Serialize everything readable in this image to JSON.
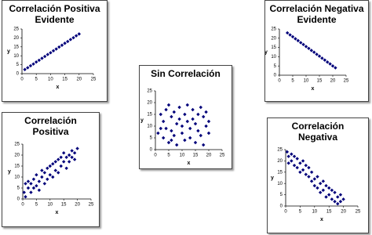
{
  "chart_data": [
    {
      "type": "scatter",
      "title": "Correlación Positiva Evidente",
      "xlabel": "x",
      "ylabel": "y",
      "xlim": [
        0,
        25
      ],
      "ylim": [
        0,
        25
      ],
      "xticks": [
        0,
        5,
        10,
        15,
        20,
        25
      ],
      "yticks": [
        0,
        5,
        10,
        15,
        20,
        25
      ],
      "color": "#00007a",
      "x": [
        1,
        2,
        3,
        4,
        5,
        6,
        7,
        8,
        9,
        10,
        11,
        12,
        13,
        14,
        15,
        16,
        17,
        18,
        19,
        20
      ],
      "y": [
        2.3,
        3.3,
        4.4,
        5.4,
        6.5,
        7.5,
        8.6,
        9.6,
        10.7,
        11.7,
        12.8,
        13.8,
        14.9,
        15.9,
        17,
        18,
        19.1,
        20.1,
        21.2,
        22.2
      ]
    },
    {
      "type": "scatter",
      "title": "Correlación Negativa Evidente",
      "xlabel": "x",
      "ylabel": "y",
      "xlim": [
        0,
        25
      ],
      "ylim": [
        0,
        25
      ],
      "xticks": [
        0,
        5,
        10,
        15,
        20,
        25
      ],
      "yticks": [
        0,
        5,
        10,
        15,
        20,
        25
      ],
      "color": "#00007a",
      "x": [
        3,
        4,
        5,
        6,
        7,
        8,
        9,
        10,
        11,
        12,
        13,
        14,
        15,
        16,
        17,
        18,
        19,
        20,
        21
      ],
      "y": [
        22.9,
        21.8,
        20.8,
        19.7,
        18.7,
        17.6,
        16.6,
        15.5,
        14.5,
        13.4,
        12.4,
        11.3,
        10.3,
        9.2,
        8.2,
        7.1,
        6.1,
        5,
        4
      ]
    },
    {
      "type": "scatter",
      "title": "Sin Correlación",
      "xlabel": "x",
      "ylabel": "y",
      "xlim": [
        0,
        25
      ],
      "ylim": [
        0,
        25
      ],
      "xticks": [
        0,
        5,
        10,
        15,
        20,
        25
      ],
      "yticks": [
        0,
        5,
        10,
        15,
        20,
        25
      ],
      "color": "#00007a",
      "x": [
        1,
        2,
        3,
        3,
        4,
        4,
        5,
        5,
        6,
        6,
        7,
        7,
        8,
        8,
        9,
        9,
        10,
        10,
        11,
        11,
        12,
        12,
        13,
        13,
        14,
        14,
        15,
        15,
        16,
        16,
        17,
        17,
        18,
        18,
        19,
        19,
        20,
        20,
        2,
        6
      ],
      "y": [
        7,
        15,
        5,
        12,
        17,
        9,
        19,
        3,
        14,
        8,
        16,
        6,
        11,
        2,
        13,
        18,
        7,
        10,
        15,
        4,
        12,
        19,
        9,
        5,
        17,
        13,
        3,
        11,
        8,
        15,
        18,
        6,
        14,
        2,
        10,
        16,
        12,
        7,
        9,
        4
      ]
    },
    {
      "type": "scatter",
      "title": "Correlación Positiva",
      "xlabel": "x",
      "ylabel": "y",
      "xlim": [
        0,
        25
      ],
      "ylim": [
        0,
        25
      ],
      "xticks": [
        0,
        5,
        10,
        15,
        20,
        25
      ],
      "yticks": [
        0,
        5,
        10,
        15,
        20,
        25
      ],
      "color": "#00007a",
      "x": [
        0.5,
        1,
        1,
        2,
        2,
        3,
        3,
        4,
        4,
        5,
        5,
        6,
        6,
        7,
        7,
        8,
        8,
        9,
        9,
        10,
        10,
        11,
        11,
        12,
        12,
        13,
        13,
        14,
        14,
        15,
        15,
        16,
        16,
        17,
        17,
        18,
        18,
        19,
        19,
        20
      ],
      "y": [
        3,
        7,
        1,
        5,
        8,
        3,
        7,
        9,
        5,
        6,
        11,
        8,
        4,
        10,
        13,
        12,
        7,
        9,
        14,
        15,
        11,
        10,
        16,
        13,
        17,
        18,
        12,
        15,
        19,
        17,
        21,
        14,
        19,
        20,
        17,
        22,
        19,
        21,
        18,
        23
      ]
    },
    {
      "type": "scatter",
      "title": "Correlación Negativa",
      "xlabel": "x",
      "ylabel": "y",
      "xlim": [
        0,
        25
      ],
      "ylim": [
        0,
        25
      ],
      "xticks": [
        0,
        5,
        10,
        15,
        20,
        25
      ],
      "yticks": [
        0,
        5,
        10,
        15,
        20,
        25
      ],
      "color": "#00007a",
      "x": [
        0.5,
        1,
        1,
        2,
        2,
        3,
        3,
        4,
        4,
        5,
        5,
        6,
        6,
        7,
        7,
        8,
        8,
        9,
        9,
        10,
        10,
        11,
        11,
        12,
        12,
        13,
        13,
        14,
        14,
        15,
        15,
        16,
        16,
        17,
        17,
        18,
        18,
        19,
        19,
        20
      ],
      "y": [
        24,
        22,
        19,
        23,
        20,
        18,
        22,
        17,
        21,
        19,
        15,
        20,
        16,
        14,
        18,
        13,
        17,
        15,
        11,
        12,
        9,
        13,
        8,
        10,
        6,
        11,
        7,
        9,
        4,
        8,
        5,
        3,
        7,
        6,
        2,
        4,
        1,
        5,
        2,
        3
      ]
    }
  ]
}
